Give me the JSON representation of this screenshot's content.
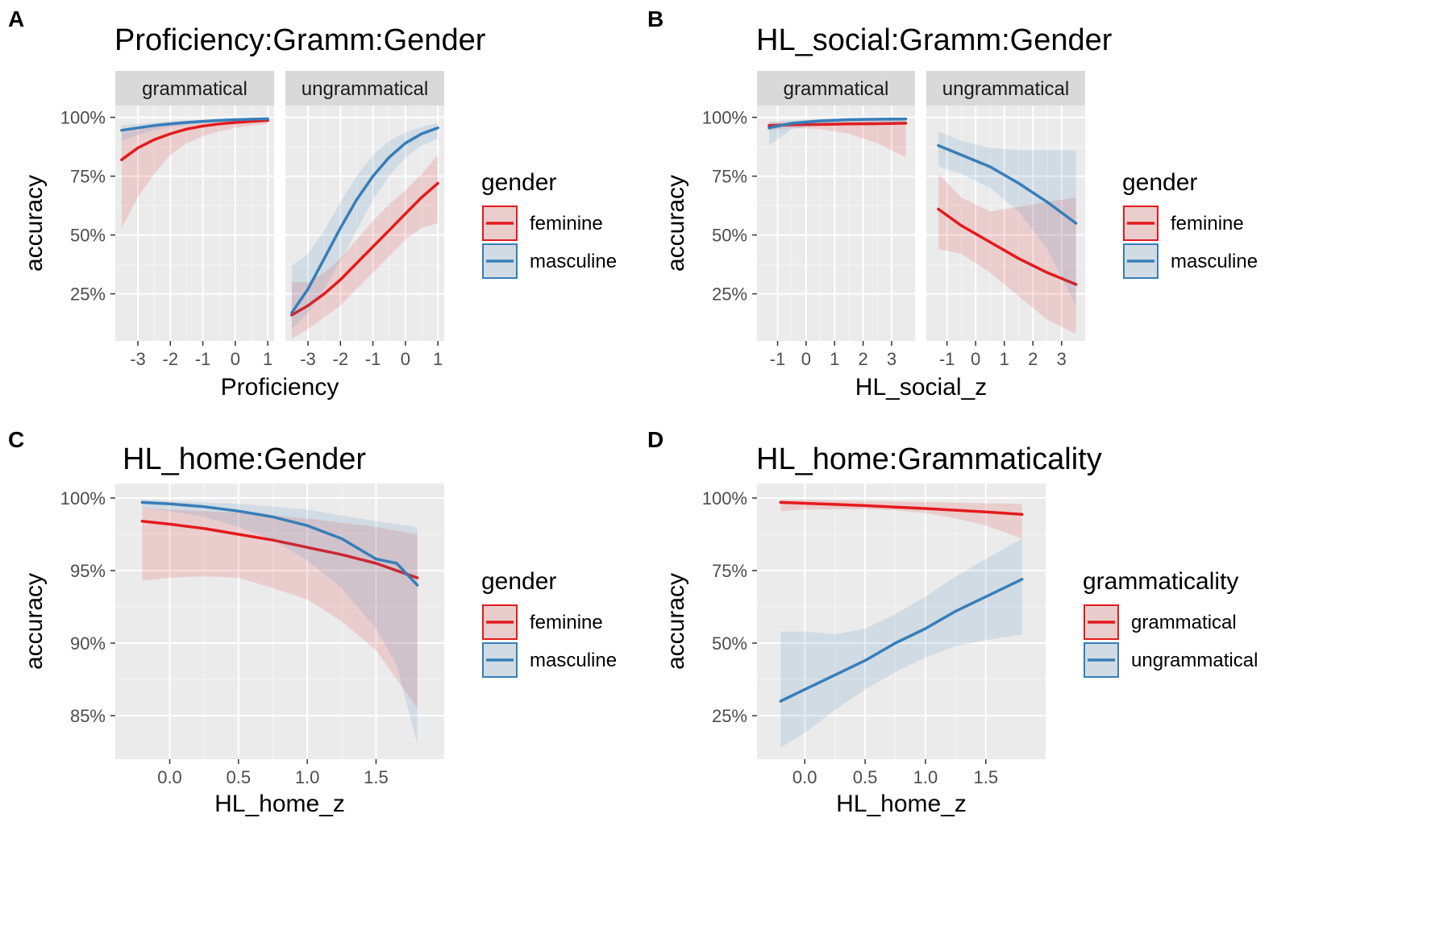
{
  "colors": {
    "red": "#e41a1c",
    "blue": "#377eb8",
    "panel_bg": "#ebebeb",
    "strip_bg": "#d9d9d9"
  },
  "chart_data": [
    {
      "letter": "A",
      "type": "line",
      "title": "Proficiency:Gramm:Gender",
      "xlabel": "Proficiency",
      "ylabel": "accuracy",
      "xlim": [
        -3.5,
        1.0
      ],
      "ylim": [
        0.05,
        1.05
      ],
      "xticks": [
        -3,
        -2,
        -1,
        0,
        1
      ],
      "xtick_labels": [
        "-3",
        "-2",
        "-1",
        "0",
        "1"
      ],
      "yticks": [
        0.25,
        0.5,
        0.75,
        1.0
      ],
      "ytick_labels": [
        "25%",
        "50%",
        "75%",
        "100%"
      ],
      "facets": [
        "grammatical",
        "ungrammatical"
      ],
      "legend": {
        "title": "gender",
        "items": [
          "feminine",
          "masculine"
        ]
      },
      "series": [
        {
          "name": "feminine",
          "facet": "grammatical",
          "color": "red",
          "x": [
            -3.5,
            -3,
            -2.5,
            -2,
            -1.5,
            -1,
            -0.5,
            0,
            0.5,
            1
          ],
          "y": [
            0.82,
            0.87,
            0.905,
            0.93,
            0.95,
            0.963,
            0.972,
            0.978,
            0.983,
            0.987
          ],
          "lo": [
            0.53,
            0.66,
            0.76,
            0.84,
            0.89,
            0.92,
            0.94,
            0.955,
            0.965,
            0.972
          ],
          "hi": [
            0.93,
            0.955,
            0.97,
            0.98,
            0.985,
            0.988,
            0.99,
            0.992,
            0.994,
            0.995
          ]
        },
        {
          "name": "masculine",
          "facet": "grammatical",
          "color": "blue",
          "x": [
            -3.5,
            -3,
            -2.5,
            -2,
            -1.5,
            -1,
            -0.5,
            0,
            0.5,
            1
          ],
          "y": [
            0.945,
            0.955,
            0.965,
            0.972,
            0.978,
            0.983,
            0.987,
            0.99,
            0.992,
            0.994
          ],
          "lo": [
            0.9,
            0.925,
            0.945,
            0.958,
            0.968,
            0.975,
            0.98,
            0.984,
            0.987,
            0.989
          ],
          "hi": [
            0.965,
            0.972,
            0.978,
            0.983,
            0.987,
            0.99,
            0.993,
            0.995,
            0.997,
            0.998
          ]
        },
        {
          "name": "feminine",
          "facet": "ungrammatical",
          "color": "red",
          "x": [
            -3.5,
            -3,
            -2.5,
            -2,
            -1.5,
            -1,
            -0.5,
            0,
            0.5,
            1
          ],
          "y": [
            0.16,
            0.2,
            0.25,
            0.31,
            0.38,
            0.45,
            0.52,
            0.59,
            0.66,
            0.72
          ],
          "lo": [
            0.06,
            0.1,
            0.15,
            0.2,
            0.27,
            0.34,
            0.41,
            0.48,
            0.53,
            0.55
          ],
          "hi": [
            0.3,
            0.3,
            0.34,
            0.4,
            0.48,
            0.56,
            0.63,
            0.69,
            0.76,
            0.84
          ]
        },
        {
          "name": "masculine",
          "facet": "ungrammatical",
          "color": "blue",
          "x": [
            -3.5,
            -3,
            -2.5,
            -2,
            -1.5,
            -1,
            -0.5,
            0,
            0.5,
            1
          ],
          "y": [
            0.17,
            0.27,
            0.4,
            0.53,
            0.65,
            0.75,
            0.83,
            0.89,
            0.93,
            0.955
          ],
          "lo": [
            0.1,
            0.17,
            0.27,
            0.39,
            0.52,
            0.65,
            0.75,
            0.83,
            0.88,
            0.91
          ],
          "hi": [
            0.37,
            0.42,
            0.52,
            0.64,
            0.75,
            0.84,
            0.9,
            0.935,
            0.96,
            0.975
          ]
        }
      ]
    },
    {
      "letter": "B",
      "type": "line",
      "title": "HL_social:Gramm:Gender",
      "xlabel": "HL_social_z",
      "ylabel": "accuracy",
      "xlim": [
        -1.5,
        3.6
      ],
      "ylim": [
        0.05,
        1.05
      ],
      "xticks": [
        -1,
        0,
        1,
        2,
        3
      ],
      "xtick_labels": [
        "-1",
        "0",
        "1",
        "2",
        "3"
      ],
      "yticks": [
        0.25,
        0.5,
        0.75,
        1.0
      ],
      "ytick_labels": [
        "25%",
        "50%",
        "75%",
        "100%"
      ],
      "facets": [
        "grammatical",
        "ungrammatical"
      ],
      "legend": {
        "title": "gender",
        "items": [
          "feminine",
          "masculine"
        ]
      },
      "series": [
        {
          "name": "feminine",
          "facet": "grammatical",
          "color": "red",
          "x": [
            -1.3,
            -0.5,
            0.5,
            1.5,
            2.5,
            3.5
          ],
          "y": [
            0.965,
            0.968,
            0.97,
            0.972,
            0.973,
            0.975
          ],
          "lo": [
            0.945,
            0.955,
            0.95,
            0.93,
            0.89,
            0.83
          ],
          "hi": [
            0.98,
            0.978,
            0.985,
            0.99,
            0.993,
            0.995
          ]
        },
        {
          "name": "masculine",
          "facet": "grammatical",
          "color": "blue",
          "x": [
            -1.3,
            -0.5,
            0.5,
            1.5,
            2.5,
            3.5
          ],
          "y": [
            0.955,
            0.975,
            0.985,
            0.99,
            0.992,
            0.993
          ],
          "lo": [
            0.88,
            0.95,
            0.97,
            0.975,
            0.975,
            0.975
          ],
          "hi": [
            0.98,
            0.988,
            0.993,
            0.996,
            0.997,
            0.998
          ]
        },
        {
          "name": "feminine",
          "facet": "ungrammatical",
          "color": "red",
          "x": [
            -1.3,
            -0.5,
            0.5,
            1.5,
            2.5,
            3.5
          ],
          "y": [
            0.61,
            0.54,
            0.47,
            0.4,
            0.34,
            0.29
          ],
          "lo": [
            0.44,
            0.42,
            0.34,
            0.24,
            0.14,
            0.08
          ],
          "hi": [
            0.76,
            0.66,
            0.6,
            0.62,
            0.64,
            0.66
          ]
        },
        {
          "name": "masculine",
          "facet": "ungrammatical",
          "color": "blue",
          "x": [
            -1.3,
            -0.5,
            0.5,
            1.5,
            2.5,
            3.5
          ],
          "y": [
            0.88,
            0.84,
            0.79,
            0.72,
            0.64,
            0.55
          ],
          "lo": [
            0.79,
            0.76,
            0.7,
            0.6,
            0.44,
            0.2
          ],
          "hi": [
            0.94,
            0.9,
            0.87,
            0.86,
            0.86,
            0.86
          ]
        }
      ]
    },
    {
      "letter": "C",
      "type": "line",
      "title": "HL_home:Gender",
      "xlabel": "HL_home_z",
      "ylabel": "accuracy",
      "xlim": [
        -0.3,
        1.9
      ],
      "ylim": [
        0.82,
        1.01
      ],
      "xticks": [
        0.0,
        0.5,
        1.0,
        1.5
      ],
      "xtick_labels": [
        "0.0",
        "0.5",
        "1.0",
        "1.5"
      ],
      "yticks": [
        0.85,
        0.9,
        0.95,
        1.0
      ],
      "ytick_labels": [
        "85%",
        "90%",
        "95%",
        "100%"
      ],
      "facets": [],
      "legend": {
        "title": "gender",
        "items": [
          "feminine",
          "masculine"
        ]
      },
      "series": [
        {
          "name": "feminine",
          "color": "red",
          "x": [
            -0.2,
            0.0,
            0.25,
            0.5,
            0.75,
            1.0,
            1.25,
            1.5,
            1.8
          ],
          "y": [
            0.984,
            0.982,
            0.979,
            0.975,
            0.971,
            0.966,
            0.961,
            0.955,
            0.945
          ],
          "lo": [
            0.943,
            0.945,
            0.946,
            0.945,
            0.938,
            0.93,
            0.915,
            0.895,
            0.855
          ],
          "hi": [
            0.993,
            0.992,
            0.991,
            0.99,
            0.988,
            0.986,
            0.983,
            0.98,
            0.975
          ]
        },
        {
          "name": "masculine",
          "color": "blue",
          "x": [
            -0.2,
            0.0,
            0.25,
            0.5,
            0.75,
            1.0,
            1.25,
            1.5,
            1.65,
            1.8
          ],
          "y": [
            0.997,
            0.996,
            0.994,
            0.991,
            0.987,
            0.981,
            0.972,
            0.958,
            0.955,
            0.94
          ],
          "lo": [
            0.993,
            0.991,
            0.987,
            0.98,
            0.971,
            0.957,
            0.938,
            0.91,
            0.885,
            0.83
          ],
          "hi": [
            0.999,
            0.998,
            0.997,
            0.996,
            0.994,
            0.992,
            0.988,
            0.984,
            0.982,
            0.98
          ]
        }
      ]
    },
    {
      "letter": "D",
      "type": "line",
      "title": "HL_home:Grammaticality",
      "xlabel": "HL_home_z",
      "ylabel": "accuracy",
      "xlim": [
        -0.3,
        1.9
      ],
      "ylim": [
        0.1,
        1.05
      ],
      "xticks": [
        0.0,
        0.5,
        1.0,
        1.5
      ],
      "xtick_labels": [
        "0.0",
        "0.5",
        "1.0",
        "1.5"
      ],
      "yticks": [
        0.25,
        0.5,
        0.75,
        1.0
      ],
      "ytick_labels": [
        "25%",
        "50%",
        "75%",
        "100%"
      ],
      "facets": [],
      "legend": {
        "title": "grammaticality",
        "items": [
          "grammatical",
          "ungrammatical"
        ]
      },
      "series": [
        {
          "name": "grammatical",
          "color": "red",
          "x": [
            -0.2,
            0.0,
            0.25,
            0.5,
            0.75,
            1.0,
            1.25,
            1.5,
            1.8
          ],
          "y": [
            0.985,
            0.982,
            0.978,
            0.974,
            0.969,
            0.964,
            0.958,
            0.952,
            0.944
          ],
          "lo": [
            0.955,
            0.96,
            0.962,
            0.962,
            0.958,
            0.948,
            0.93,
            0.905,
            0.86
          ],
          "hi": [
            0.995,
            0.994,
            0.992,
            0.99,
            0.988,
            0.986,
            0.984,
            0.982,
            0.98
          ]
        },
        {
          "name": "ungrammatical",
          "color": "blue",
          "x": [
            -0.2,
            0.0,
            0.25,
            0.5,
            0.75,
            1.0,
            1.25,
            1.5,
            1.8
          ],
          "y": [
            0.3,
            0.34,
            0.39,
            0.44,
            0.5,
            0.55,
            0.61,
            0.66,
            0.72
          ],
          "lo": [
            0.14,
            0.19,
            0.27,
            0.34,
            0.4,
            0.45,
            0.49,
            0.51,
            0.53
          ],
          "hi": [
            0.54,
            0.54,
            0.53,
            0.55,
            0.6,
            0.66,
            0.73,
            0.79,
            0.86
          ]
        }
      ]
    }
  ]
}
